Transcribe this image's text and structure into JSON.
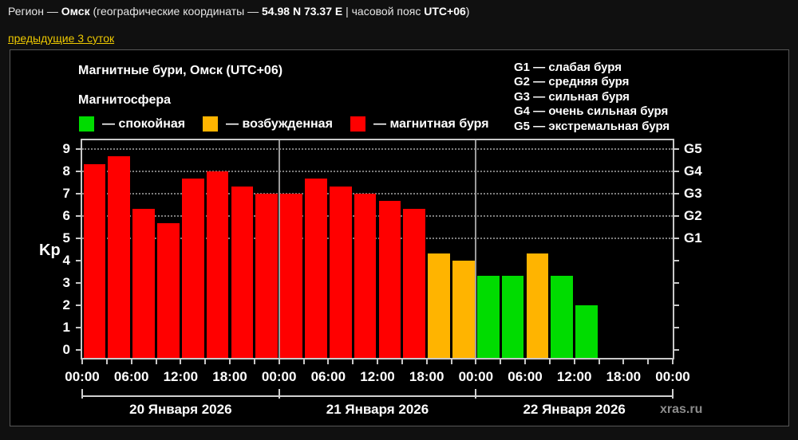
{
  "page": {
    "header": {
      "prefix": "Регион — ",
      "region": "Омск",
      "mid": " (географические координаты — ",
      "coords": "54.98 N 73.37 E",
      "sep": " | часовой пояс ",
      "tz": "UTC+06",
      "suffix": ")"
    },
    "link_label": "предыдущие 3 суток",
    "link_color": "#eec900"
  },
  "panel": {
    "title": "Магнитные бури, Омск (UTC+06)",
    "legend_title": "Магнитосфера",
    "legend": [
      {
        "key": "quiet",
        "label": "— спокойная",
        "color": "#00dc00"
      },
      {
        "key": "excited",
        "label": "— возбужденная",
        "color": "#ffb400"
      },
      {
        "key": "storm",
        "label": "— магнитная буря",
        "color": "#ff0000"
      }
    ],
    "g_legend": [
      "G1 — слабая буря",
      "G2 — средняя буря",
      "G3 — сильная буря",
      "G4 — очень сильная буря",
      "G5 — экстремальная буря"
    ],
    "watermark": "xras.ru"
  },
  "chart_data": {
    "type": "bar",
    "title": "Магнитные бури, Омск (UTC+06)",
    "ylabel": "Kp",
    "ylim": [
      0,
      9
    ],
    "y_ticks": [
      0,
      1,
      2,
      3,
      4,
      5,
      6,
      7,
      8,
      9
    ],
    "grid": "dotted horizontal lines at Kp 5..9 only",
    "g_levels": [
      {
        "label": "G1",
        "kp": 5
      },
      {
        "label": "G2",
        "kp": 6
      },
      {
        "label": "G3",
        "kp": 7
      },
      {
        "label": "G4",
        "kp": 8
      },
      {
        "label": "G5",
        "kp": 9
      }
    ],
    "hours_total": 72,
    "bar_duration_hours": 3,
    "x_tick_step_hours": 3,
    "x_label_step_hours": 6,
    "x_labels": [
      "00:00",
      "06:00",
      "12:00",
      "18:00",
      "00:00",
      "06:00",
      "12:00",
      "18:00",
      "00:00",
      "06:00",
      "12:00",
      "18:00",
      "00:00"
    ],
    "days": [
      {
        "label": "20 Января 2026",
        "start_hour": 0
      },
      {
        "label": "21 Января 2026",
        "start_hour": 24
      },
      {
        "label": "22 Января 2026",
        "start_hour": 48
      }
    ],
    "colors": {
      "quiet": "#00dc00",
      "excited": "#ffb400",
      "storm": "#ff0000"
    },
    "series": [
      {
        "start_hour": 0,
        "kp": 8.33,
        "level": "storm"
      },
      {
        "start_hour": 3,
        "kp": 8.67,
        "level": "storm"
      },
      {
        "start_hour": 6,
        "kp": 6.33,
        "level": "storm"
      },
      {
        "start_hour": 9,
        "kp": 5.67,
        "level": "storm"
      },
      {
        "start_hour": 12,
        "kp": 7.67,
        "level": "storm"
      },
      {
        "start_hour": 15,
        "kp": 8.0,
        "level": "storm"
      },
      {
        "start_hour": 18,
        "kp": 7.33,
        "level": "storm"
      },
      {
        "start_hour": 21,
        "kp": 7.0,
        "level": "storm"
      },
      {
        "start_hour": 24,
        "kp": 7.0,
        "level": "storm"
      },
      {
        "start_hour": 27,
        "kp": 7.67,
        "level": "storm"
      },
      {
        "start_hour": 30,
        "kp": 7.33,
        "level": "storm"
      },
      {
        "start_hour": 33,
        "kp": 7.0,
        "level": "storm"
      },
      {
        "start_hour": 36,
        "kp": 6.67,
        "level": "storm"
      },
      {
        "start_hour": 39,
        "kp": 6.33,
        "level": "storm"
      },
      {
        "start_hour": 42,
        "kp": 4.33,
        "level": "excited"
      },
      {
        "start_hour": 45,
        "kp": 4.0,
        "level": "excited"
      },
      {
        "start_hour": 48,
        "kp": 3.33,
        "level": "quiet"
      },
      {
        "start_hour": 51,
        "kp": 3.33,
        "level": "quiet"
      },
      {
        "start_hour": 54,
        "kp": 4.33,
        "level": "excited"
      },
      {
        "start_hour": 57,
        "kp": 3.33,
        "level": "quiet"
      },
      {
        "start_hour": 60,
        "kp": 2.0,
        "level": "quiet"
      }
    ]
  }
}
